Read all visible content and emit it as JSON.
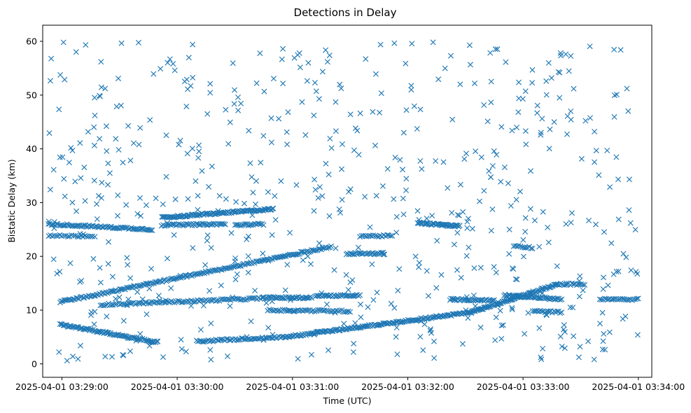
{
  "chart_data": {
    "type": "scatter",
    "title": "Detections in Delay",
    "xlabel": "Time (UTC)",
    "ylabel": "Bistatic Delay (km)",
    "marker": "x",
    "color": "#1f77b4",
    "grid": false,
    "x_range": [
      "2025-04-01 03:28:50",
      "2025-04-01 03:34:07"
    ],
    "ylim": [
      -2.5,
      63
    ],
    "xticks": [
      "2025-04-01 03:29:00",
      "2025-04-01 03:30:00",
      "2025-04-01 03:31:00",
      "2025-04-01 03:32:00",
      "2025-04-01 03:33:00",
      "2025-04-01 03:34:00"
    ],
    "yticks": [
      0,
      10,
      20,
      30,
      40,
      50,
      60
    ],
    "tracks": [
      {
        "x_start": "2025-04-01 03:28:59",
        "x_end": "2025-04-01 03:31:20",
        "y_start": 11.5,
        "y_end": 21.8,
        "count": 200
      },
      {
        "x_start": "2025-04-01 03:30:10",
        "x_end": "2025-04-01 03:30:56",
        "y_start": 4.2,
        "y_end": 5.0,
        "count": 60
      },
      {
        "x_start": "2025-04-01 03:30:56",
        "x_end": "2025-04-01 03:32:33",
        "y_start": 5.0,
        "y_end": 9.6,
        "count": 160
      },
      {
        "x_start": "2025-04-01 03:32:33",
        "x_end": "2025-04-01 03:33:18",
        "y_start": 9.6,
        "y_end": 14.8,
        "count": 90
      },
      {
        "x_start": "2025-04-01 03:28:59",
        "x_end": "2025-04-01 03:29:50",
        "y_start": 7.3,
        "y_end": 4.0,
        "count": 90
      },
      {
        "x_start": "2025-04-01 03:29:52",
        "x_end": "2025-04-01 03:30:50",
        "y_start": 27.2,
        "y_end": 28.8,
        "count": 110
      },
      {
        "x_start": "2025-04-01 03:28:53",
        "x_end": "2025-04-01 03:29:47",
        "y_start": 26.0,
        "y_end": 25.0,
        "count": 80
      },
      {
        "x_start": "2025-04-01 03:28:53",
        "x_end": "2025-04-01 03:29:17",
        "y_start": 23.8,
        "y_end": 23.8,
        "count": 25
      },
      {
        "x_start": "2025-04-01 03:29:52",
        "x_end": "2025-04-01 03:30:25",
        "y_start": 25.8,
        "y_end": 26.0,
        "count": 45
      },
      {
        "x_start": "2025-04-01 03:30:30",
        "x_end": "2025-04-01 03:30:45",
        "y_start": 25.8,
        "y_end": 26.0,
        "count": 20
      },
      {
        "x_start": "2025-04-01 03:29:20",
        "x_end": "2025-04-01 03:30:45",
        "y_start": 11.0,
        "y_end": 12.2,
        "count": 100
      },
      {
        "x_start": "2025-04-01 03:30:45",
        "x_end": "2025-04-01 03:31:10",
        "y_start": 12.3,
        "y_end": 12.3,
        "count": 40
      },
      {
        "x_start": "2025-04-01 03:30:47",
        "x_end": "2025-04-01 03:31:30",
        "y_start": 10.0,
        "y_end": 9.8,
        "count": 50
      },
      {
        "x_start": "2025-04-01 03:31:12",
        "x_end": "2025-04-01 03:31:35",
        "y_start": 12.7,
        "y_end": 12.7,
        "count": 35
      },
      {
        "x_start": "2025-04-01 03:31:28",
        "x_end": "2025-04-01 03:31:48",
        "y_start": 20.5,
        "y_end": 20.5,
        "count": 30
      },
      {
        "x_start": "2025-04-01 03:31:35",
        "x_end": "2025-04-01 03:31:52",
        "y_start": 23.8,
        "y_end": 23.8,
        "count": 20
      },
      {
        "x_start": "2025-04-01 03:32:05",
        "x_end": "2025-04-01 03:32:27",
        "y_start": 26.2,
        "y_end": 25.6,
        "count": 45
      },
      {
        "x_start": "2025-04-01 03:32:22",
        "x_end": "2025-04-01 03:32:45",
        "y_start": 12.0,
        "y_end": 11.8,
        "count": 35
      },
      {
        "x_start": "2025-04-01 03:32:55",
        "x_end": "2025-04-01 03:33:05",
        "y_start": 22.0,
        "y_end": 21.6,
        "count": 12
      },
      {
        "x_start": "2025-04-01 03:32:50",
        "x_end": "2025-04-01 03:33:20",
        "y_start": 12.8,
        "y_end": 12.0,
        "count": 50
      },
      {
        "x_start": "2025-04-01 03:33:05",
        "x_end": "2025-04-01 03:33:20",
        "y_start": 9.8,
        "y_end": 9.6,
        "count": 20
      },
      {
        "x_start": "2025-04-01 03:33:18",
        "x_end": "2025-04-01 03:33:32",
        "y_start": 14.8,
        "y_end": 14.8,
        "count": 18
      },
      {
        "x_start": "2025-04-01 03:33:40",
        "x_end": "2025-04-01 03:34:00",
        "y_start": 12.0,
        "y_end": 12.0,
        "count": 25
      }
    ],
    "clutter": {
      "count": 600,
      "x_range": [
        "2025-04-01 03:28:53",
        "2025-04-01 03:34:00"
      ],
      "y_range": [
        0.5,
        60
      ]
    }
  }
}
